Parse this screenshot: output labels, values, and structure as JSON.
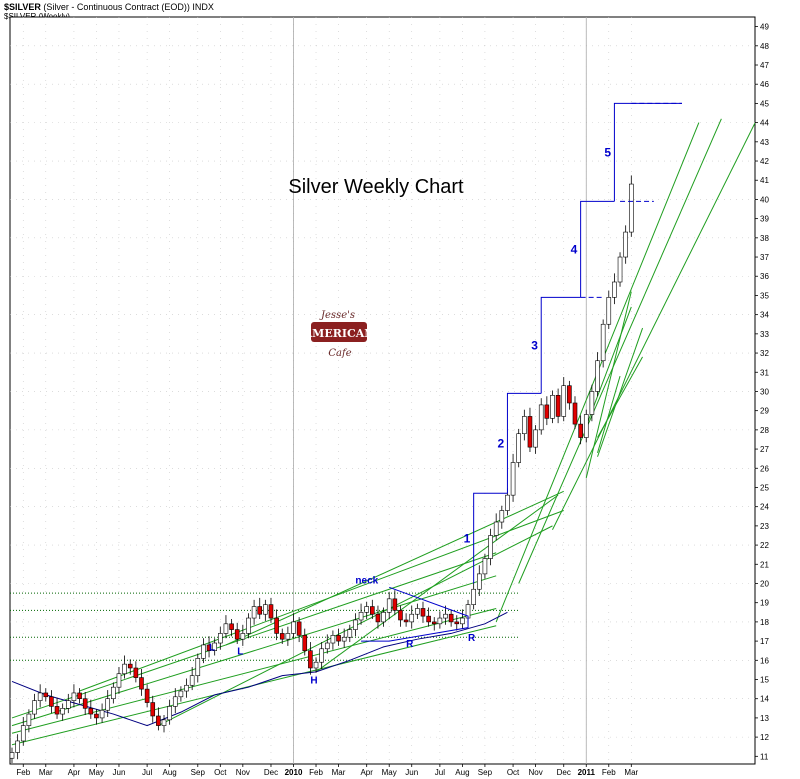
{
  "header": {
    "symbol": "$SILVER",
    "description": "(Silver - Continuous Contract (EOD))",
    "exchange": "INDX",
    "sub": "$SILVER (Weekly)"
  },
  "chart_data": {
    "type": "candlestick",
    "title": "Silver Weekly Chart",
    "logo_text": [
      "Jesse's",
      "AMERICAN",
      "Cafe"
    ],
    "ylim": [
      10.6,
      49.5
    ],
    "yticks": [
      11,
      12,
      13,
      14,
      15,
      16,
      17,
      18,
      19,
      20,
      21,
      22,
      23,
      24,
      25,
      26,
      27,
      28,
      29,
      30,
      31,
      32,
      33,
      34,
      35,
      36,
      37,
      38,
      39,
      40,
      41,
      42,
      43,
      44,
      45,
      46,
      47,
      48,
      49
    ],
    "x_labels": [
      "Feb",
      "Mar",
      "Apr",
      "May",
      "Jun",
      "Jul",
      "Aug",
      "Sep",
      "Oct",
      "Nov",
      "Dec",
      "2010",
      "Feb",
      "Mar",
      "Apr",
      "May",
      "Jun",
      "Jul",
      "Aug",
      "Sep",
      "Oct",
      "Nov",
      "Dec",
      "2011",
      "Feb",
      "Mar"
    ],
    "x_label_weeks": [
      2,
      6,
      11,
      15,
      19,
      24,
      28,
      33,
      37,
      41,
      46,
      50,
      54,
      58,
      63,
      67,
      71,
      76,
      80,
      84,
      89,
      93,
      98,
      102,
      106,
      110
    ],
    "year_dividers": [
      50,
      102
    ],
    "candles_close": [
      11.2,
      11.8,
      12.6,
      13.2,
      13.9,
      14.3,
      14.1,
      13.6,
      13.2,
      13.5,
      13.9,
      14.3,
      14.0,
      13.5,
      13.2,
      13.0,
      13.4,
      14.0,
      14.6,
      15.3,
      15.8,
      15.6,
      15.1,
      14.5,
      13.8,
      13.1,
      12.6,
      12.9,
      13.6,
      14.1,
      14.4,
      14.7,
      15.2,
      16.1,
      16.8,
      16.5,
      16.9,
      17.4,
      17.9,
      17.6,
      17.1,
      17.4,
      18.2,
      18.8,
      18.4,
      18.9,
      18.2,
      17.4,
      17.1,
      17.4,
      18.0,
      17.3,
      16.5,
      15.6,
      15.9,
      16.6,
      16.9,
      17.3,
      17.0,
      17.2,
      17.6,
      18.1,
      18.5,
      18.8,
      18.4,
      18.0,
      18.5,
      19.2,
      18.6,
      18.1,
      18.0,
      18.4,
      18.7,
      18.3,
      18.0,
      17.9,
      18.2,
      18.4,
      18.0,
      17.9,
      18.2,
      18.9,
      19.7,
      20.5,
      21.3,
      22.5,
      23.2,
      23.8,
      24.6,
      26.3,
      27.8,
      28.7,
      27.1,
      28.0,
      29.3,
      28.6,
      29.8,
      28.7,
      30.3,
      29.4,
      28.3,
      27.6,
      28.8,
      30.0,
      31.6,
      33.5,
      34.9,
      35.7,
      37.0,
      38.3,
      40.8
    ],
    "candle_range": [
      0,
      110
    ],
    "trend_lines": [
      {
        "p1": [
          0,
          13.0
        ],
        "p2": [
          86,
          21.6
        ]
      },
      {
        "p1": [
          0,
          12.6
        ],
        "p2": [
          86,
          20.4
        ]
      },
      {
        "p1": [
          0,
          12.2
        ],
        "p2": [
          86,
          18.7
        ]
      },
      {
        "p1": [
          0,
          11.6
        ],
        "p2": [
          86,
          17.8
        ]
      },
      {
        "p1": [
          12,
          14.4
        ],
        "p2": [
          98,
          23.8
        ]
      },
      {
        "p1": [
          26,
          12.6
        ],
        "p2": [
          96,
          23.0
        ]
      },
      {
        "p1": [
          54,
          15.4
        ],
        "p2": [
          97,
          24.6
        ]
      },
      {
        "p1": [
          38,
          16.8
        ],
        "p2": [
          98,
          24.8
        ]
      },
      {
        "p1": [
          86,
          18.0
        ],
        "p2": [
          122,
          44.0
        ]
      },
      {
        "p1": [
          90,
          20.0
        ],
        "p2": [
          126,
          44.2
        ]
      },
      {
        "p1": [
          96,
          22.8
        ],
        "p2": [
          132,
          44.0
        ]
      },
      {
        "p1": [
          102,
          25.5
        ],
        "p2": [
          110,
          35.2
        ]
      },
      {
        "p1": [
          104,
          26.6
        ],
        "p2": [
          112,
          33.3
        ]
      },
      {
        "p1": [
          104,
          27.6
        ],
        "p2": [
          112,
          31.8
        ]
      },
      {
        "p1": [
          104,
          26.8
        ],
        "p2": [
          108,
          30.8
        ]
      },
      {
        "p1": [
          102,
          28.2
        ],
        "p2": [
          110,
          34.4
        ]
      }
    ],
    "resistance_lines": [
      19.5,
      18.6,
      17.2,
      16.0
    ],
    "moving_average": [
      [
        0,
        14.9
      ],
      [
        6,
        14.2
      ],
      [
        12,
        13.7
      ],
      [
        18,
        13.2
      ],
      [
        24,
        12.6
      ],
      [
        30,
        13.3
      ],
      [
        36,
        14.2
      ],
      [
        42,
        14.6
      ],
      [
        48,
        15.2
      ],
      [
        54,
        15.4
      ],
      [
        60,
        16.0
      ],
      [
        66,
        16.7
      ],
      [
        72,
        17.1
      ],
      [
        78,
        17.4
      ],
      [
        84,
        17.9
      ],
      [
        88,
        18.5
      ]
    ],
    "steps": [
      {
        "label": "1",
        "x": 82,
        "y0": 20.0,
        "y1": 24.7,
        "x_end": 88
      },
      {
        "label": "2",
        "x": 88,
        "y0": 24.7,
        "y1": 29.9,
        "x_end": 94
      },
      {
        "label": "3",
        "x": 94,
        "y0": 29.9,
        "y1": 34.9,
        "x_end": 101
      },
      {
        "label": "4",
        "x": 101,
        "y0": 34.9,
        "y1": 39.9,
        "x_end": 107
      },
      {
        "label": "5",
        "x": 107,
        "y0": 39.9,
        "y1": 45.0,
        "x_end": 119
      }
    ],
    "pattern_labels": [
      {
        "text": "L",
        "x": 35,
        "y": 16.5
      },
      {
        "text": "L",
        "x": 40,
        "y": 16.3
      },
      {
        "text": "H",
        "x": 53,
        "y": 14.8
      },
      {
        "text": "R",
        "x": 70,
        "y": 16.7
      },
      {
        "text": "R",
        "x": 81,
        "y": 17.0
      },
      {
        "text": "neck",
        "x": 61,
        "y": 20.0
      }
    ]
  }
}
